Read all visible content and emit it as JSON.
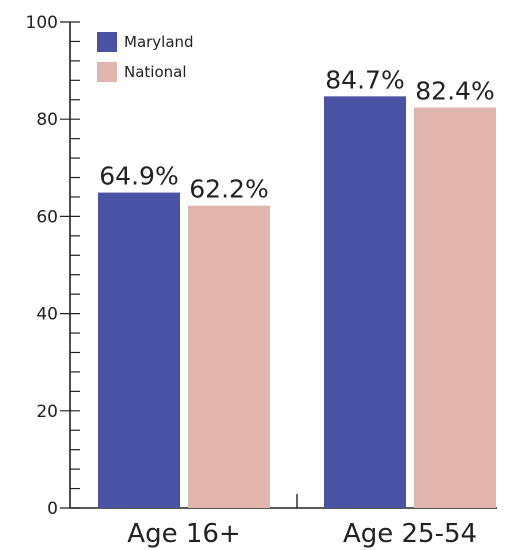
{
  "chart_data": {
    "type": "bar",
    "categories": [
      "Age 16+",
      "Age 25-54"
    ],
    "series": [
      {
        "name": "Maryland",
        "values": [
          64.9,
          84.7
        ],
        "labels": [
          "64.9%",
          "84.7%"
        ],
        "color": "#4a53a3"
      },
      {
        "name": "National",
        "values": [
          62.2,
          82.4
        ],
        "labels": [
          "62.2%",
          "82.4%"
        ],
        "color": "#e0b5ae"
      }
    ],
    "ylim": [
      0,
      100
    ],
    "yticks": [
      "0",
      "20",
      "40",
      "60",
      "80",
      "100"
    ],
    "grid": false,
    "legend": "top-left",
    "xlabel": "",
    "ylabel": "",
    "title": ""
  }
}
